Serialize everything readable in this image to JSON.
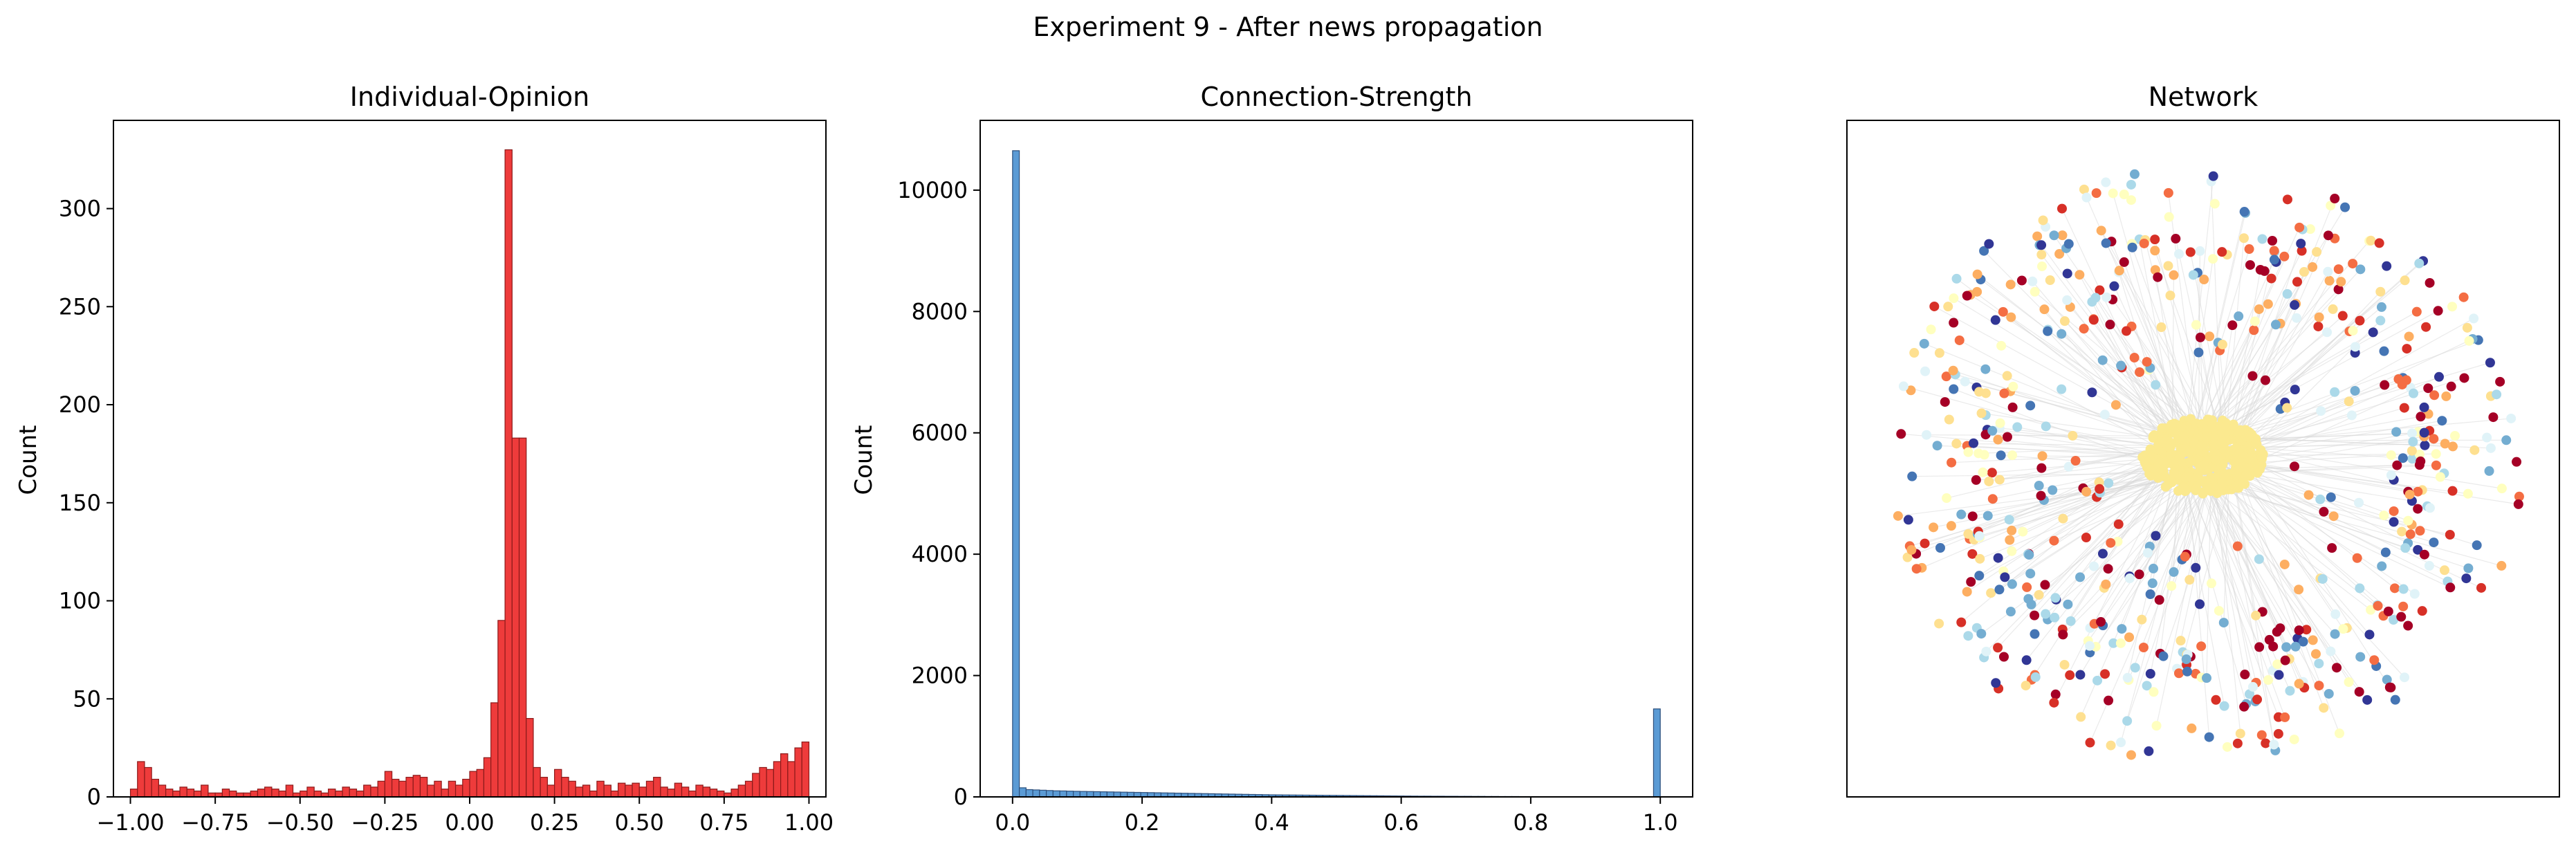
{
  "suptitle": "Experiment 9 - After news propagation",
  "chart_data": [
    {
      "type": "bar",
      "title": "Individual-Opinion",
      "xlabel": "",
      "ylabel": "Count",
      "xlim": [
        -1.05,
        1.05
      ],
      "ylim": [
        0,
        345
      ],
      "xticks": [
        -1.0,
        -0.75,
        -0.5,
        -0.25,
        0.0,
        0.25,
        0.5,
        0.75,
        1.0
      ],
      "xtick_labels": [
        "−1.00",
        "−0.75",
        "−0.50",
        "−0.25",
        "0.00",
        "0.25",
        "0.50",
        "0.75",
        "1.00"
      ],
      "yticks": [
        0,
        50,
        100,
        150,
        200,
        250,
        300
      ],
      "ytick_labels": [
        "0",
        "50",
        "100",
        "150",
        "200",
        "250",
        "300"
      ],
      "color": "#ee3b3b",
      "edge_color": "#8b1a1a",
      "bin_range": [
        -1.0,
        1.0
      ],
      "values": [
        4,
        18,
        15,
        9,
        6,
        4,
        3,
        5,
        4,
        3,
        6,
        2,
        2,
        4,
        3,
        2,
        2,
        3,
        4,
        5,
        4,
        3,
        6,
        2,
        3,
        5,
        3,
        2,
        4,
        3,
        5,
        4,
        3,
        6,
        5,
        8,
        13,
        9,
        8,
        10,
        11,
        10,
        6,
        8,
        4,
        8,
        6,
        9,
        13,
        14,
        20,
        48,
        90,
        330,
        183,
        183,
        40,
        15,
        10,
        6,
        14,
        10,
        8,
        5,
        6,
        3,
        8,
        6,
        3,
        7,
        6,
        7,
        5,
        8,
        10,
        5,
        4,
        7,
        5,
        3,
        6,
        5,
        4,
        3,
        2,
        4,
        6,
        8,
        12,
        15,
        14,
        18,
        22,
        18,
        25,
        28
      ]
    },
    {
      "type": "bar",
      "title": "Connection-Strength",
      "xlabel": "",
      "ylabel": "Count",
      "xlim": [
        -0.05,
        1.05
      ],
      "ylim": [
        0,
        11150
      ],
      "xticks": [
        0.0,
        0.2,
        0.4,
        0.6,
        0.8,
        1.0
      ],
      "xtick_labels": [
        "0.0",
        "0.2",
        "0.4",
        "0.6",
        "0.8",
        "1.0"
      ],
      "yticks": [
        0,
        2000,
        4000,
        6000,
        8000,
        10000
      ],
      "ytick_labels": [
        "0",
        "2000",
        "4000",
        "6000",
        "8000",
        "10000"
      ],
      "color": "#5b9bd5",
      "edge_color": "#2c4f7c",
      "bin_range": [
        0.0,
        1.0
      ],
      "values": [
        10650,
        150,
        120,
        115,
        110,
        105,
        100,
        98,
        95,
        92,
        90,
        88,
        86,
        84,
        82,
        80,
        78,
        76,
        74,
        72,
        70,
        68,
        66,
        64,
        62,
        60,
        58,
        56,
        54,
        52,
        50,
        48,
        46,
        44,
        42,
        40,
        38,
        36,
        34,
        33,
        32,
        31,
        30,
        29,
        28,
        27,
        26,
        25,
        24,
        23,
        22,
        21,
        20,
        19,
        18,
        17,
        16,
        15,
        14,
        13,
        12,
        12,
        11,
        11,
        10,
        10,
        9,
        9,
        8,
        8,
        7,
        7,
        6,
        6,
        6,
        5,
        5,
        5,
        4,
        4,
        4,
        3,
        3,
        3,
        3,
        2,
        2,
        2,
        2,
        2,
        2,
        2,
        2,
        2,
        5,
        1450
      ]
    },
    {
      "type": "network",
      "title": "Network",
      "node_palette": [
        "#a50026",
        "#d73027",
        "#f46d43",
        "#fdae61",
        "#fee090",
        "#ffffbf",
        "#e0f3f8",
        "#abd9e9",
        "#74add1",
        "#4575b4",
        "#313695"
      ],
      "edge_color": "#d9d9d9",
      "core_color": "#fbe98f"
    }
  ]
}
